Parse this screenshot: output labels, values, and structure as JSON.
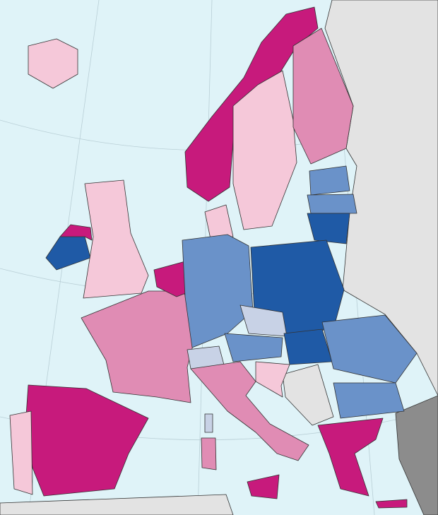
{
  "map": {
    "sea": "#dff3f8",
    "outside": "#e3e3e3",
    "outside_dark": "#8c8c8c",
    "colors": [
      "#c71a7c",
      "#e08cb4",
      "#f5c8d9",
      "#c8d2e6",
      "#6a92c9",
      "#1f5aa6"
    ]
  }
}
